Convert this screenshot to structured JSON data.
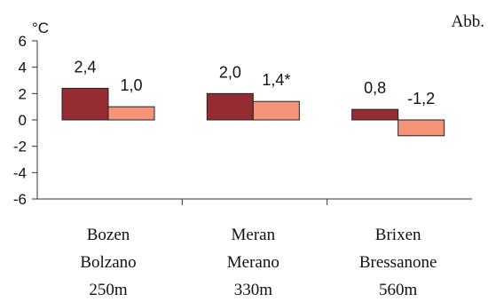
{
  "corner_label": "Abb.",
  "chart_data": {
    "type": "bar",
    "unit_label": "°C",
    "categories": [
      {
        "lines": [
          "Bozen",
          "Bolzano",
          "250m"
        ]
      },
      {
        "lines": [
          "Meran",
          "Merano",
          "330m"
        ]
      },
      {
        "lines": [
          "Brixen",
          "Bressanone",
          "560m"
        ]
      }
    ],
    "series": [
      {
        "color": "#952b33",
        "values": [
          2.4,
          2.0,
          0.8
        ],
        "labels": [
          "2,4",
          "2,0",
          "0,8"
        ]
      },
      {
        "color": "#f4957a",
        "values": [
          1.0,
          1.4,
          -1.2
        ],
        "labels": [
          "1,0",
          "1,4*",
          "-1,2"
        ]
      }
    ],
    "ylim": [
      -6,
      6
    ],
    "yticks": [
      6,
      4,
      2,
      0,
      -2,
      -4,
      -6
    ],
    "ytick_labels": [
      "6",
      "4",
      "2",
      "0",
      "-2",
      "-4",
      "-6"
    ],
    "grid": false,
    "legend": "none"
  }
}
